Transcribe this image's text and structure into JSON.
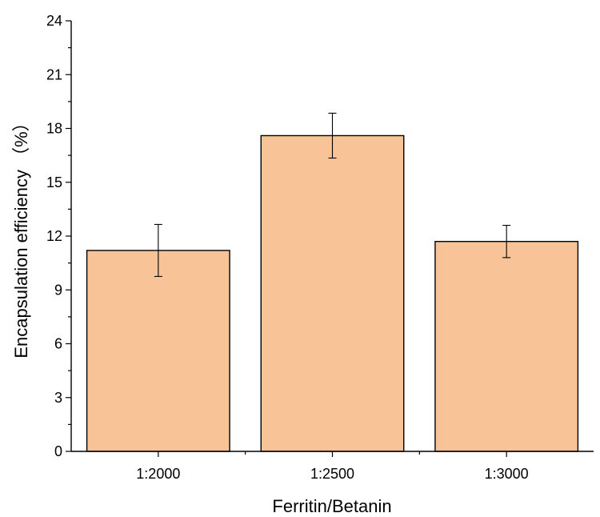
{
  "chart_data": {
    "type": "bar",
    "xlabel": "Ferritin/Betanin",
    "ylabel": "Encapsulation efficiency （%）",
    "ylim": [
      0,
      24
    ],
    "yticks": [
      0,
      3,
      6,
      9,
      12,
      15,
      18,
      21,
      24
    ],
    "categories": [
      "1:2000",
      "1:2500",
      "1:3000"
    ],
    "values": [
      11.2,
      17.6,
      11.7
    ],
    "errors": [
      1.45,
      1.25,
      0.9
    ],
    "bar_color": "#f8c396",
    "grid": false
  }
}
